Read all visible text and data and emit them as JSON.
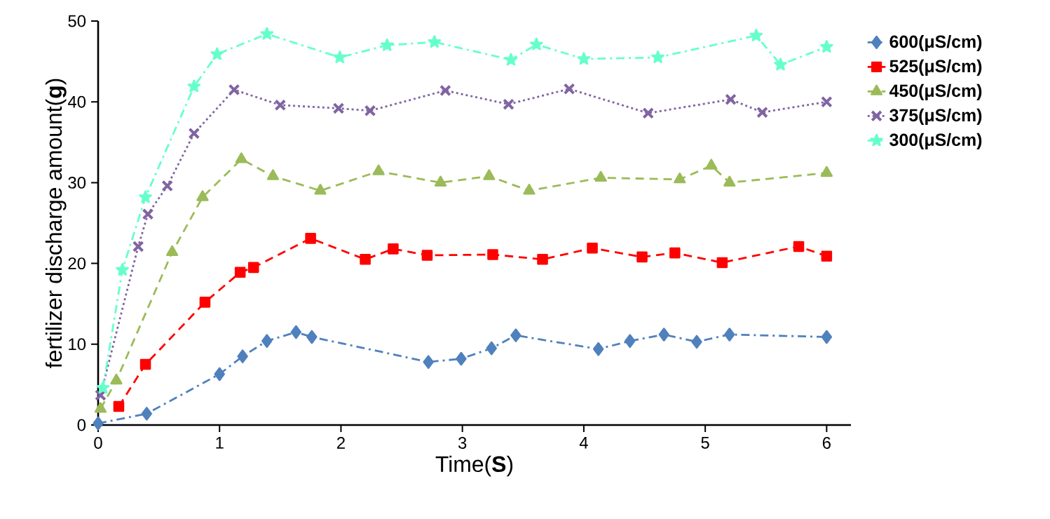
{
  "chart_data": {
    "type": "line",
    "xlabel": "Time(**S**)",
    "ylabel": "fertilizer discharge amount(**g**)",
    "xlim": [
      0,
      6.2
    ],
    "ylim": [
      0,
      50
    ],
    "xticks": [
      0,
      1,
      2,
      3,
      4,
      5,
      6
    ],
    "yticks": [
      0,
      10,
      20,
      30,
      40,
      50
    ],
    "grid": false,
    "legend": "top right",
    "series": [
      {
        "name": "600(μS/cm)",
        "color": "#4f81bd",
        "marker": "diamond",
        "line_style": "dashdot",
        "x": [
          0,
          0.4,
          1.0,
          1.19,
          1.39,
          1.63,
          1.76,
          2.72,
          2.99,
          3.24,
          3.44,
          4.12,
          4.38,
          4.66,
          4.93,
          5.2,
          6
        ],
        "values": [
          0.2,
          1.4,
          6.3,
          8.5,
          10.4,
          11.5,
          10.9,
          7.8,
          8.2,
          9.5,
          11.1,
          9.4,
          10.4,
          11.2,
          10.3,
          11.2,
          10.9
        ]
      },
      {
        "name": "525(μS/cm)",
        "color": "#ff0000",
        "marker": "square",
        "line_style": "dashed",
        "x": [
          0.17,
          0.39,
          0.88,
          1.17,
          1.28,
          1.75,
          2.2,
          2.43,
          2.71,
          3.25,
          3.66,
          4.07,
          4.48,
          4.75,
          5.14,
          5.77,
          6
        ],
        "values": [
          2.3,
          7.5,
          15.2,
          18.9,
          19.5,
          23.1,
          20.5,
          21.8,
          21.0,
          21.1,
          20.5,
          21.9,
          20.8,
          21.3,
          20.1,
          22.1,
          20.9
        ]
      },
      {
        "name": "450(μS/cm)",
        "color": "#9bbb59",
        "marker": "triangle",
        "line_style": "dashed",
        "x": [
          0.02,
          0.15,
          0.61,
          0.86,
          1.18,
          1.44,
          1.83,
          2.31,
          2.82,
          3.22,
          3.55,
          4.14,
          4.79,
          5.05,
          5.2,
          6
        ],
        "values": [
          2.0,
          5.5,
          21.4,
          28.2,
          32.9,
          30.8,
          29.0,
          31.4,
          30.0,
          30.8,
          29.0,
          30.6,
          30.4,
          32.1,
          30.0,
          31.2
        ]
      },
      {
        "name": "375(μS/cm)",
        "color": "#8064a2",
        "marker": "cross",
        "line_style": "dotted",
        "x": [
          0.02,
          0.33,
          0.41,
          0.57,
          0.79,
          1.12,
          1.5,
          1.98,
          2.24,
          2.86,
          3.38,
          3.88,
          4.53,
          5.21,
          5.47,
          6
        ],
        "values": [
          3.7,
          22.1,
          26.1,
          29.6,
          36.1,
          41.5,
          39.6,
          39.2,
          38.9,
          41.4,
          39.7,
          41.6,
          38.6,
          40.3,
          38.7,
          40.0
        ]
      },
      {
        "name": "300(μS/cm)",
        "color": "#66ffcc",
        "marker": "star",
        "line_style": "dashdot",
        "x": [
          0.04,
          0.2,
          0.39,
          0.79,
          0.98,
          1.39,
          1.99,
          2.38,
          2.77,
          3.4,
          3.61,
          4.0,
          4.61,
          5.42,
          5.62,
          6
        ],
        "values": [
          4.6,
          19.2,
          28.2,
          41.9,
          45.9,
          48.4,
          45.5,
          47.0,
          47.4,
          45.2,
          47.1,
          45.3,
          45.5,
          48.2,
          44.6,
          46.8
        ]
      }
    ]
  }
}
